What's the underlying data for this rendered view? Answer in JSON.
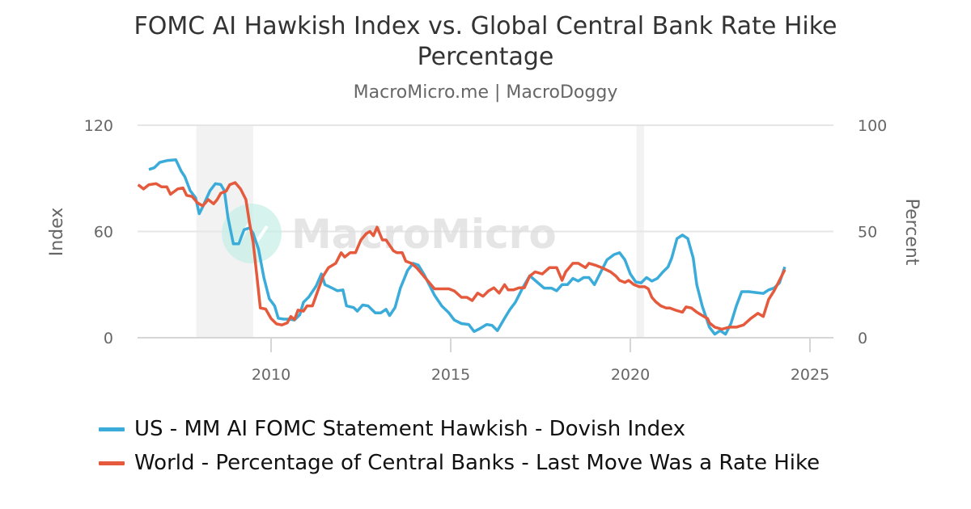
{
  "header": {
    "title_line1": "FOMC AI Hawkish Index vs. Global Central Bank Rate Hike",
    "title_line2": "Percentage",
    "subtitle": "MacroMicro.me | MacroDoggy"
  },
  "watermark": {
    "text": "MacroMicro",
    "logo_icon": "macromicro-logo-icon"
  },
  "colors": {
    "series_us": "#3bacd9",
    "series_world": "#e55a3c",
    "gridline": "#e6e6e6",
    "recession": "#f2f2f2",
    "axis_text": "#666666"
  },
  "chart_data": {
    "type": "line",
    "title": "FOMC AI Hawkish Index vs. Global Central Bank Rate Hike Percentage",
    "subtitle": "MacroMicro.me | MacroDoggy",
    "xlabel": "",
    "ylabel_left": "Index",
    "ylabel_right": "Percent",
    "xlim": [
      2006.3,
      2025.65
    ],
    "ylim_left": [
      0,
      120
    ],
    "ylim_right": [
      0,
      100
    ],
    "x_ticks": [
      "2010",
      "2015",
      "2020",
      "2025"
    ],
    "y_ticks_left": [
      "0",
      "60",
      "120"
    ],
    "y_ticks_right": [
      "0",
      "50",
      "100"
    ],
    "grid": true,
    "legend_position": "bottom",
    "recession_bands": [
      [
        2007.92,
        2009.5
      ],
      [
        2020.17,
        2020.38
      ]
    ],
    "series": [
      {
        "name": "US - MM AI FOMC Statement Hawkish - Dovish Index",
        "axis": "left",
        "color": "#3bacd9",
        "points": [
          [
            2006.6,
            95
          ],
          [
            2006.75,
            96
          ],
          [
            2006.9,
            99
          ],
          [
            2007.1,
            100
          ],
          [
            2007.35,
            100.5
          ],
          [
            2007.5,
            94
          ],
          [
            2007.6,
            91
          ],
          [
            2007.75,
            83
          ],
          [
            2007.9,
            79
          ],
          [
            2008.0,
            70
          ],
          [
            2008.1,
            74
          ],
          [
            2008.3,
            83
          ],
          [
            2008.45,
            87
          ],
          [
            2008.6,
            86.5
          ],
          [
            2008.7,
            83
          ],
          [
            2008.8,
            68
          ],
          [
            2008.95,
            53
          ],
          [
            2009.1,
            53
          ],
          [
            2009.25,
            61
          ],
          [
            2009.4,
            62
          ],
          [
            2009.5,
            59
          ],
          [
            2009.65,
            50
          ],
          [
            2009.8,
            34
          ],
          [
            2009.95,
            22
          ],
          [
            2010.1,
            18
          ],
          [
            2010.2,
            11
          ],
          [
            2010.35,
            10.5
          ],
          [
            2010.5,
            10.5
          ],
          [
            2010.65,
            10
          ],
          [
            2010.8,
            13
          ],
          [
            2010.9,
            20
          ],
          [
            2011.05,
            23
          ],
          [
            2011.25,
            29
          ],
          [
            2011.4,
            36
          ],
          [
            2011.5,
            30
          ],
          [
            2011.7,
            28
          ],
          [
            2011.85,
            26.5
          ],
          [
            2012.0,
            27
          ],
          [
            2012.1,
            18
          ],
          [
            2012.3,
            17
          ],
          [
            2012.4,
            15
          ],
          [
            2012.55,
            18.5
          ],
          [
            2012.7,
            18
          ],
          [
            2012.9,
            14
          ],
          [
            2013.05,
            14
          ],
          [
            2013.2,
            16
          ],
          [
            2013.3,
            12.5
          ],
          [
            2013.45,
            17
          ],
          [
            2013.6,
            28
          ],
          [
            2013.8,
            38
          ],
          [
            2013.95,
            42
          ],
          [
            2014.1,
            41
          ],
          [
            2014.25,
            36
          ],
          [
            2014.4,
            30
          ],
          [
            2014.55,
            24
          ],
          [
            2014.75,
            18
          ],
          [
            2014.95,
            14
          ],
          [
            2015.1,
            10
          ],
          [
            2015.3,
            8
          ],
          [
            2015.5,
            7.5
          ],
          [
            2015.65,
            3.5
          ],
          [
            2015.8,
            5
          ],
          [
            2016.0,
            7.5
          ],
          [
            2016.15,
            7
          ],
          [
            2016.3,
            4
          ],
          [
            2016.5,
            11
          ],
          [
            2016.65,
            16
          ],
          [
            2016.8,
            20
          ],
          [
            2017.0,
            28
          ],
          [
            2017.2,
            35
          ],
          [
            2017.4,
            31.5
          ],
          [
            2017.6,
            28
          ],
          [
            2017.8,
            28
          ],
          [
            2017.95,
            26.5
          ],
          [
            2018.1,
            30
          ],
          [
            2018.25,
            30
          ],
          [
            2018.4,
            33.5
          ],
          [
            2018.55,
            32
          ],
          [
            2018.7,
            34
          ],
          [
            2018.85,
            34
          ],
          [
            2019.0,
            30
          ],
          [
            2019.15,
            36
          ],
          [
            2019.35,
            44
          ],
          [
            2019.55,
            47
          ],
          [
            2019.7,
            48
          ],
          [
            2019.85,
            44
          ],
          [
            2020.0,
            36
          ],
          [
            2020.15,
            31.5
          ],
          [
            2020.3,
            31
          ],
          [
            2020.45,
            34
          ],
          [
            2020.6,
            32
          ],
          [
            2020.75,
            33.5
          ],
          [
            2020.9,
            37
          ],
          [
            2021.05,
            40
          ],
          [
            2021.15,
            45
          ],
          [
            2021.3,
            56
          ],
          [
            2021.45,
            58
          ],
          [
            2021.6,
            56
          ],
          [
            2021.75,
            45
          ],
          [
            2021.85,
            30
          ],
          [
            2022.0,
            18
          ],
          [
            2022.2,
            6
          ],
          [
            2022.35,
            2
          ],
          [
            2022.5,
            4
          ],
          [
            2022.65,
            2
          ],
          [
            2022.8,
            8
          ],
          [
            2022.95,
            18
          ],
          [
            2023.1,
            26
          ],
          [
            2023.3,
            26
          ],
          [
            2023.5,
            25.5
          ],
          [
            2023.7,
            25
          ],
          [
            2023.85,
            27
          ],
          [
            2024.0,
            28
          ],
          [
            2024.15,
            31
          ],
          [
            2024.3,
            40
          ]
        ]
      },
      {
        "name": "World - Percentage of Central Banks - Last Move Was a Rate Hike",
        "axis": "right",
        "color": "#e55a3c",
        "points": [
          [
            2006.3,
            72
          ],
          [
            2006.45,
            70
          ],
          [
            2006.6,
            72
          ],
          [
            2006.8,
            72.5
          ],
          [
            2006.95,
            71
          ],
          [
            2007.1,
            71
          ],
          [
            2007.2,
            67.5
          ],
          [
            2007.4,
            70
          ],
          [
            2007.55,
            70.5
          ],
          [
            2007.65,
            67
          ],
          [
            2007.8,
            66.5
          ],
          [
            2007.95,
            63.5
          ],
          [
            2008.1,
            62
          ],
          [
            2008.25,
            65
          ],
          [
            2008.4,
            63
          ],
          [
            2008.5,
            65
          ],
          [
            2008.6,
            68
          ],
          [
            2008.75,
            69
          ],
          [
            2008.85,
            72
          ],
          [
            2009.0,
            73
          ],
          [
            2009.15,
            70
          ],
          [
            2009.3,
            65
          ],
          [
            2009.4,
            54
          ],
          [
            2009.5,
            45
          ],
          [
            2009.6,
            30
          ],
          [
            2009.7,
            14
          ],
          [
            2009.85,
            13.5
          ],
          [
            2010.0,
            9
          ],
          [
            2010.15,
            6.5
          ],
          [
            2010.3,
            6
          ],
          [
            2010.45,
            7
          ],
          [
            2010.55,
            10
          ],
          [
            2010.65,
            8.5
          ],
          [
            2010.75,
            13
          ],
          [
            2010.9,
            12.5
          ],
          [
            2011.0,
            15
          ],
          [
            2011.15,
            15
          ],
          [
            2011.3,
            22
          ],
          [
            2011.45,
            29
          ],
          [
            2011.6,
            33
          ],
          [
            2011.8,
            35
          ],
          [
            2011.95,
            40
          ],
          [
            2012.05,
            38
          ],
          [
            2012.2,
            40
          ],
          [
            2012.35,
            40
          ],
          [
            2012.5,
            46
          ],
          [
            2012.65,
            49
          ],
          [
            2012.75,
            50
          ],
          [
            2012.85,
            48
          ],
          [
            2012.95,
            52
          ],
          [
            2013.1,
            46
          ],
          [
            2013.2,
            46
          ],
          [
            2013.4,
            41
          ],
          [
            2013.5,
            40
          ],
          [
            2013.65,
            40
          ],
          [
            2013.75,
            36
          ],
          [
            2013.9,
            35
          ],
          [
            2014.05,
            33
          ],
          [
            2014.2,
            30
          ],
          [
            2014.35,
            27
          ],
          [
            2014.55,
            23
          ],
          [
            2014.75,
            23
          ],
          [
            2014.95,
            23
          ],
          [
            2015.1,
            22
          ],
          [
            2015.3,
            19
          ],
          [
            2015.45,
            19
          ],
          [
            2015.6,
            17.5
          ],
          [
            2015.75,
            21
          ],
          [
            2015.9,
            19.5
          ],
          [
            2016.05,
            22
          ],
          [
            2016.2,
            23.5
          ],
          [
            2016.35,
            21
          ],
          [
            2016.5,
            25
          ],
          [
            2016.6,
            22.5
          ],
          [
            2016.75,
            22.5
          ],
          [
            2016.9,
            23.5
          ],
          [
            2017.05,
            23.5
          ],
          [
            2017.2,
            29
          ],
          [
            2017.35,
            31
          ],
          [
            2017.55,
            30
          ],
          [
            2017.75,
            33
          ],
          [
            2017.95,
            33
          ],
          [
            2018.1,
            27
          ],
          [
            2018.2,
            31
          ],
          [
            2018.4,
            35
          ],
          [
            2018.55,
            35
          ],
          [
            2018.75,
            33
          ],
          [
            2018.85,
            35
          ],
          [
            2019.05,
            34
          ],
          [
            2019.2,
            33
          ],
          [
            2019.45,
            31
          ],
          [
            2019.6,
            29
          ],
          [
            2019.7,
            27
          ],
          [
            2019.85,
            26
          ],
          [
            2019.95,
            27
          ],
          [
            2020.1,
            25
          ],
          [
            2020.25,
            24
          ],
          [
            2020.4,
            24
          ],
          [
            2020.5,
            23
          ],
          [
            2020.6,
            19
          ],
          [
            2020.7,
            17
          ],
          [
            2020.85,
            15
          ],
          [
            2021.0,
            14
          ],
          [
            2021.1,
            14
          ],
          [
            2021.25,
            13
          ],
          [
            2021.45,
            12
          ],
          [
            2021.55,
            14.5
          ],
          [
            2021.7,
            14
          ],
          [
            2021.85,
            12
          ],
          [
            2021.95,
            11
          ],
          [
            2022.05,
            10
          ],
          [
            2022.15,
            9
          ],
          [
            2022.2,
            7
          ],
          [
            2022.35,
            5
          ],
          [
            2022.55,
            4
          ],
          [
            2022.75,
            5
          ],
          [
            2022.95,
            5
          ],
          [
            2023.15,
            6
          ],
          [
            2023.35,
            9
          ],
          [
            2023.55,
            11.5
          ],
          [
            2023.7,
            10
          ],
          [
            2023.85,
            18
          ],
          [
            2024.0,
            22
          ],
          [
            2024.15,
            27
          ],
          [
            2024.3,
            32
          ]
        ]
      }
    ]
  },
  "legend": {
    "items": [
      {
        "label": "US - MM AI FOMC Statement Hawkish - Dovish Index",
        "color": "#3bacd9"
      },
      {
        "label": "World - Percentage of Central Banks - Last Move Was a Rate Hike",
        "color": "#e55a3c"
      }
    ]
  }
}
